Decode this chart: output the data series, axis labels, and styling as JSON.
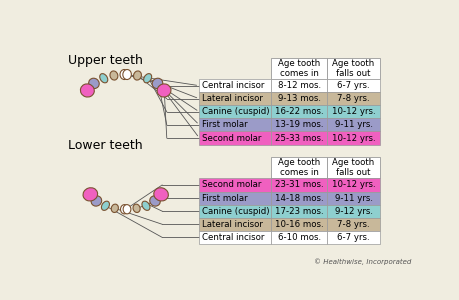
{
  "title_upper": "Upper teeth",
  "title_lower": "Lower teeth",
  "col_headers": [
    "Age tooth\ncomes in",
    "Age tooth\nfalls out"
  ],
  "upper_rows": [
    {
      "label": "Central incisor",
      "comes_in": "8-12 mos.",
      "falls_out": "6-7 yrs.",
      "color": "#ffffff"
    },
    {
      "label": "Lateral incisor",
      "comes_in": "9-13 mos.",
      "falls_out": "7-8 yrs.",
      "color": "#c8b89a"
    },
    {
      "label": "Canine (cuspid)",
      "comes_in": "16-22 mos.",
      "falls_out": "10-12 yrs.",
      "color": "#8ecfcf"
    },
    {
      "label": "First molar",
      "comes_in": "13-19 mos.",
      "falls_out": "9-11 yrs.",
      "color": "#9b9bc8"
    },
    {
      "label": "Second molar",
      "comes_in": "25-33 mos.",
      "falls_out": "10-12 yrs.",
      "color": "#f060c0"
    }
  ],
  "lower_rows": [
    {
      "label": "Second molar",
      "comes_in": "23-31 mos.",
      "falls_out": "10-12 yrs.",
      "color": "#f060c0"
    },
    {
      "label": "First molar",
      "comes_in": "14-18 mos.",
      "falls_out": "9-11 yrs.",
      "color": "#9b9bc8"
    },
    {
      "label": "Canine (cuspid)",
      "comes_in": "17-23 mos.",
      "falls_out": "9-12 yrs.",
      "color": "#8ecfcf"
    },
    {
      "label": "Lateral incisor",
      "comes_in": "10-16 mos.",
      "falls_out": "7-8 yrs.",
      "color": "#c8b89a"
    },
    {
      "label": "Central incisor",
      "comes_in": "6-10 mos.",
      "falls_out": "6-7 yrs.",
      "color": "#ffffff"
    }
  ],
  "copyright": "© Healthwise, Incorporated",
  "bg_color": "#f0ede0",
  "edge_color": "#7a5230",
  "line_color": "#555555"
}
